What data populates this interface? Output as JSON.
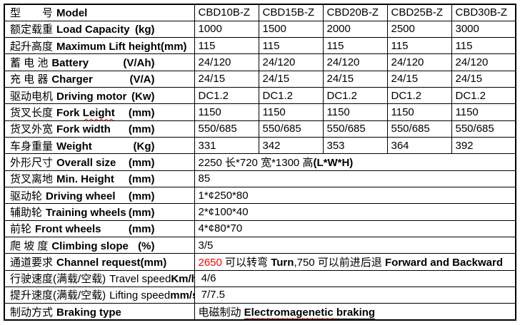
{
  "accent": {
    "red_text": "#FF0000",
    "border": "#000000",
    "background": "#FFFFFF"
  },
  "header": {
    "cn": "型　　号",
    "en": "Model",
    "models": [
      "CBD10B-Z",
      "CBD15B-Z",
      "CBD20B-Z",
      "CBD25B-Z",
      "CBD30B-Z"
    ]
  },
  "spec_rows": [
    {
      "cn": "额定载重",
      "en": "Load Capacity",
      "unit": "(kg)",
      "values": [
        "1000",
        "1500",
        "2000",
        "2500",
        "3000"
      ]
    },
    {
      "cn": "起升高度",
      "en": "Maximum Lift height",
      "unit": "(mm)",
      "values": [
        "115",
        "115",
        "115",
        "115",
        "115"
      ]
    },
    {
      "cn": "蓄 电 池",
      "en": "Battery",
      "unit": "(V/Ah)",
      "values": [
        "24/120",
        "24/120",
        "24/120",
        "24/120",
        "24/120"
      ]
    },
    {
      "cn": "充 电 器",
      "en": "Charger",
      "unit": "(V/A)",
      "values": [
        "24/15",
        "24/15",
        "24/15",
        "24/15",
        "24/15"
      ]
    },
    {
      "cn": "驱动电机",
      "en": "Driving motor",
      "unit": "(Kw)",
      "values": [
        "DC1.2",
        "DC1.2",
        "DC1.2",
        "DC1.2",
        "DC1.2"
      ]
    },
    {
      "cn": "货叉长度",
      "en": "Fork Leight",
      "unit": "(mm)",
      "en_parts": [
        {
          "t": "Fork "
        },
        {
          "t": "Leight",
          "wavy": true
        }
      ],
      "values": [
        "1150",
        "1150",
        "1150",
        "1150",
        "1150"
      ]
    },
    {
      "cn": "货叉外宽",
      "en": "Fork width",
      "unit": "(mm)",
      "values": [
        "550/685",
        "550/685",
        "550/685",
        "550/685",
        "550/685"
      ]
    },
    {
      "cn": "车身重量",
      "en": "Weight",
      "unit": "(Kg)",
      "values": [
        "331",
        "342",
        "353",
        "364",
        "392"
      ]
    }
  ],
  "span_rows": [
    {
      "cn": "外形尺寸",
      "en": "Overall size",
      "unit": "(mm)",
      "value_parts": [
        {
          "t": "2250 长*720 宽*1300 高"
        },
        {
          "t": "(L*W*H)",
          "b": true
        }
      ]
    },
    {
      "cn": "货叉离地",
      "en": "Min. Height",
      "unit": "(mm)",
      "value_parts": [
        {
          "t": "85"
        }
      ]
    },
    {
      "cn": "驱动轮",
      "en": "Driving wheel",
      "unit": "(mm)",
      "value_parts": [
        {
          "t": "1*¢250*80"
        }
      ]
    },
    {
      "cn": "辅助轮",
      "en": "Training wheels",
      "unit": "(mm)",
      "value_parts": [
        {
          "t": "2*¢100*40"
        }
      ]
    },
    {
      "cn": "前轮",
      "en": "Front wheels",
      "unit": "(mm)",
      "value_parts": [
        {
          "t": "4*¢80*70"
        }
      ]
    },
    {
      "cn": "爬 坡 度",
      "en": "Climbing slope",
      "unit": "(%)",
      "value_parts": [
        {
          "t": "3/5"
        }
      ]
    },
    {
      "cn": "通道要求",
      "en": "Channel request",
      "unit": "(mm)",
      "value_parts": [
        {
          "t": "2650 ",
          "red": true
        },
        {
          "t": "可以转弯 "
        },
        {
          "t": "Turn",
          "b": true
        },
        {
          "t": ",750 可以前进后退 "
        },
        {
          "t": "Forward and Backward",
          "b": true
        }
      ]
    },
    {
      "cn": "行驶速度(满载/空载)",
      "en": "Travel speed",
      "en_bold": false,
      "unit": "Km/h",
      "unit_tight": true,
      "value_parts": [
        {
          "t": " 4/6"
        }
      ]
    },
    {
      "cn": "提升速度(满载/空载)",
      "en": "Lifting speed",
      "en_bold": false,
      "unit": "mm/s",
      "unit_tight": true,
      "value_parts": [
        {
          "t": " 7/7.5"
        }
      ]
    },
    {
      "cn": "制动方式",
      "en": "Braking type",
      "unit": "",
      "value_parts": [
        {
          "t": "电磁制动 "
        },
        {
          "t": "Electromagenetic",
          "b": true,
          "u": true,
          "wavy": true
        },
        {
          "t": " braking",
          "b": true,
          "u": true
        }
      ]
    }
  ]
}
